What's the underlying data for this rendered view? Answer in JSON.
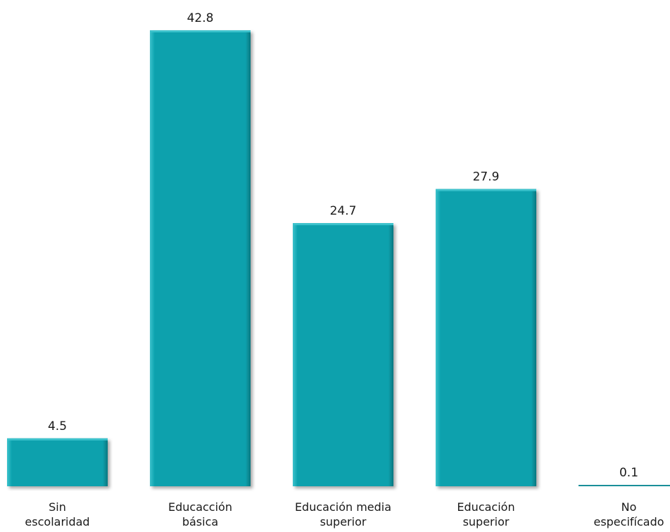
{
  "chart_data": {
    "type": "bar",
    "categories": [
      [
        "Sin",
        "escolaridad"
      ],
      [
        "Educacción",
        "básica"
      ],
      [
        "Educación media",
        "superior"
      ],
      [
        "Educación",
        "superior"
      ],
      [
        "No",
        "especifícado"
      ]
    ],
    "values": [
      4.5,
      42.8,
      24.7,
      27.9,
      0.1
    ],
    "value_labels": [
      "4.5",
      "42.8",
      "24.7",
      "27.9",
      "0.1"
    ],
    "title": "",
    "xlabel": "",
    "ylabel": "",
    "ylim": [
      0,
      42.8
    ],
    "grid": false,
    "legend": "none",
    "colors": {
      "bar_fill": "#0aa1ad",
      "bar_edge_light": "#3cc2cc",
      "bar_edge_dark": "#067780",
      "baseline": "#1a8f99",
      "text": "#1a1a1a"
    }
  }
}
